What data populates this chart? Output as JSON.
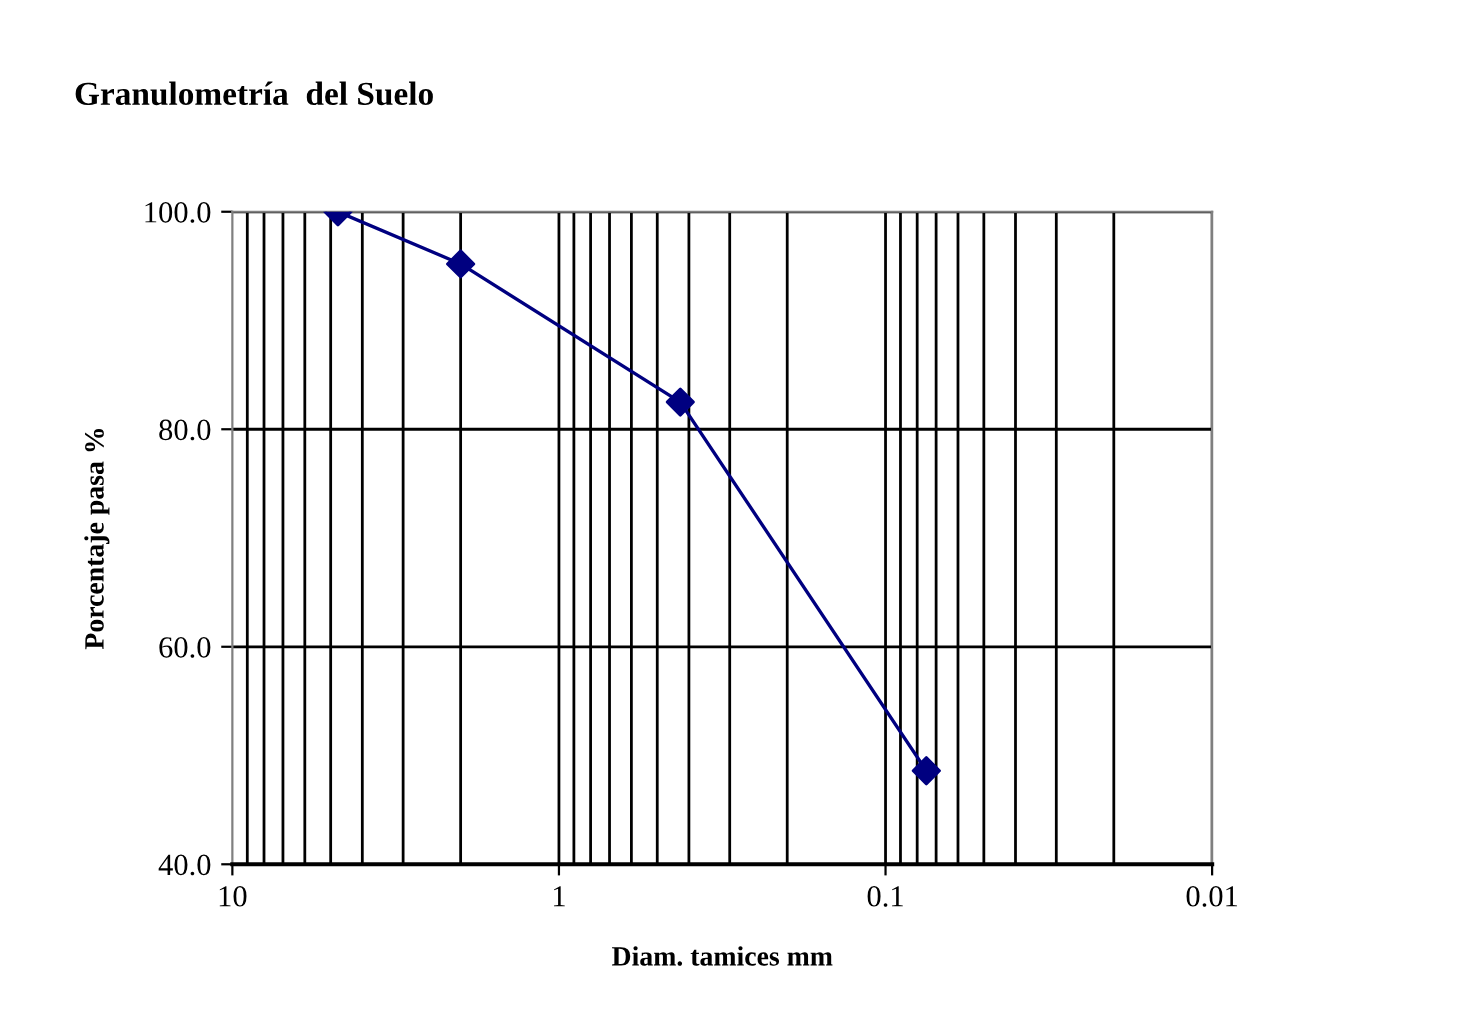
{
  "chart_data": {
    "type": "line",
    "title": "Granulometría  del Suelo",
    "xlabel": "Diam. tamices mm",
    "ylabel": "Porcentaje pasa %",
    "log": "x",
    "x": [
      4.75,
      2.0,
      0.425,
      0.075
    ],
    "series": [
      {
        "color": "#000080",
        "values": [
          100.0,
          95.2,
          82.5,
          48.6
        ]
      }
    ],
    "xlim": [
      10,
      0.01
    ],
    "xticks": [
      10,
      1,
      0.1,
      0.01
    ],
    "ylim": [
      40,
      100
    ],
    "yticks": [
      {
        "value": 40,
        "label": "40.0"
      },
      {
        "value": 60,
        "label": "60.0"
      },
      {
        "value": 80,
        "label": "80.0"
      },
      {
        "value": 100,
        "label": "100.0"
      }
    ],
    "grid": true,
    "marker": "diamond",
    "line_style": "solid"
  }
}
